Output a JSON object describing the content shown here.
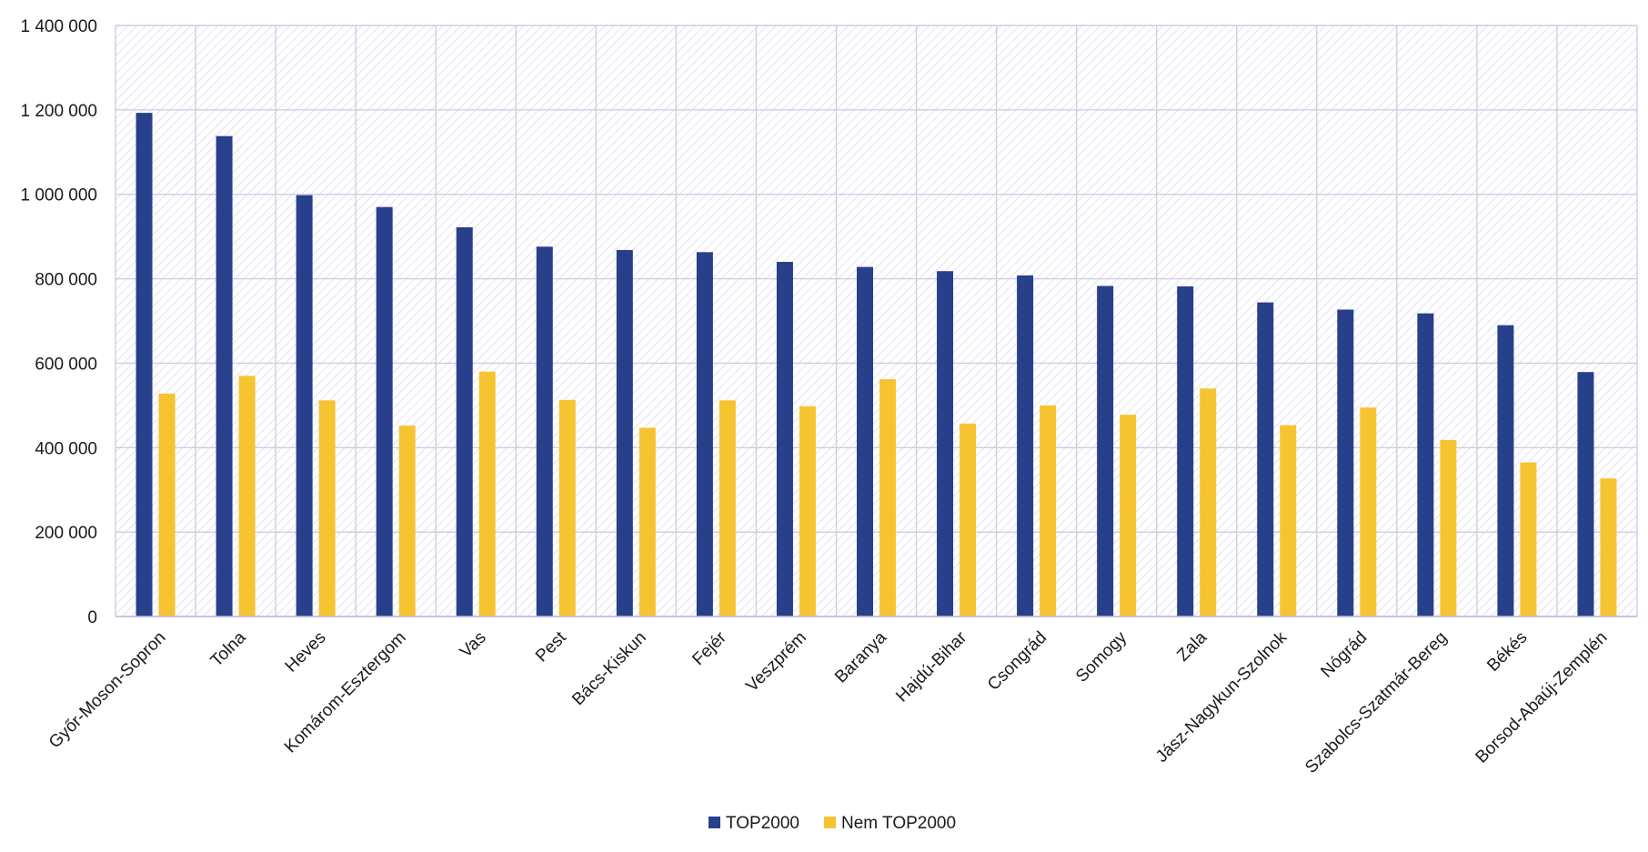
{
  "chart_data": {
    "type": "bar",
    "title": "",
    "xlabel": "",
    "ylabel": "",
    "ylim": [
      0,
      1400000
    ],
    "yticks": [
      0,
      200000,
      400000,
      600000,
      800000,
      1000000,
      1200000,
      1400000
    ],
    "ytick_labels": [
      "0",
      "200 000",
      "400 000",
      "600 000",
      "800 000",
      "1 000 000",
      "1 200 000",
      "1 400 000"
    ],
    "grid": true,
    "legend_position": "bottom-center",
    "categories": [
      "Győr-Moson-Sopron",
      "Tolna",
      "Heves",
      "Komárom-Esztergom",
      "Vas",
      "Pest",
      "Bács-Kiskun",
      "Fejér",
      "Veszprém",
      "Baranya",
      "Hajdú-Bihar",
      "Csongrád",
      "Somogy",
      "Zala",
      "Jász-Nagykun-Szolnok",
      "Nógrád",
      "Szabolcs-Szatmár-Bereg",
      "Békés",
      "Borsod-Abaúj-Zemplén"
    ],
    "series": [
      {
        "name": "TOP2000",
        "color": "#283f8c",
        "values": [
          1193000,
          1138000,
          998000,
          970000,
          922000,
          876000,
          868000,
          863000,
          840000,
          828000,
          818000,
          808000,
          783000,
          782000,
          744000,
          727000,
          718000,
          690000,
          579000
        ]
      },
      {
        "name": "Nem TOP2000",
        "color": "#f6c431",
        "values": [
          528000,
          570000,
          512000,
          452000,
          580000,
          513000,
          447000,
          512000,
          498000,
          562000,
          457000,
          500000,
          478000,
          540000,
          453000,
          495000,
          418000,
          365000,
          327000
        ]
      }
    ]
  }
}
